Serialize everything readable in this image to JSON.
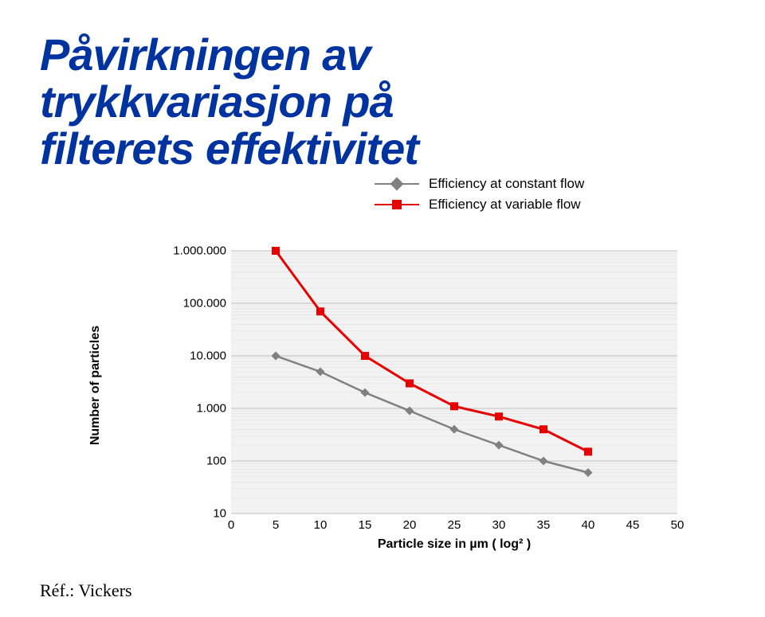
{
  "title_lines": [
    "Påvirkningen av",
    "trykkvariasjon på",
    "filterets effektivitet"
  ],
  "title_color": "#0033a0",
  "title_shadow_color": "#8b98c2",
  "title_fontsize": 56,
  "legend": {
    "items": [
      {
        "label": "Efficiency at constant flow",
        "color": "#808080",
        "marker": "diamond"
      },
      {
        "label": "Efficiency at variable flow",
        "color": "#e60000",
        "marker": "square"
      }
    ],
    "fontsize": 17
  },
  "chart": {
    "type": "line",
    "background_color": "#f2f2f2",
    "gridline_color": "#cccccc",
    "ylabel": "Number of particles",
    "xlabel": "Particle size in µm ( log² )",
    "x_min": 0,
    "x_max": 50,
    "x_tick_step": 5,
    "x_ticks": [
      "0",
      "5",
      "10",
      "15",
      "20",
      "25",
      "30",
      "35",
      "40",
      "45",
      "50"
    ],
    "y_scale": "log",
    "y_ticks": [
      {
        "v": 1000000,
        "label": "1.000.000"
      },
      {
        "v": 100000,
        "label": "100.000"
      },
      {
        "v": 10000,
        "label": "10.000"
      },
      {
        "v": 1000,
        "label": "1.000"
      },
      {
        "v": 100,
        "label": "100"
      },
      {
        "v": 10,
        "label": "10"
      }
    ],
    "series": [
      {
        "name": "constant",
        "color": "#808080",
        "line_width": 2.5,
        "marker": "diamond",
        "marker_size": 11,
        "points": [
          {
            "x": 5,
            "y": 10000
          },
          {
            "x": 10,
            "y": 5000
          },
          {
            "x": 15,
            "y": 2000
          },
          {
            "x": 20,
            "y": 900
          },
          {
            "x": 25,
            "y": 400
          },
          {
            "x": 30,
            "y": 200
          },
          {
            "x": 35,
            "y": 100
          },
          {
            "x": 40,
            "y": 60
          }
        ]
      },
      {
        "name": "variable",
        "color": "#e60000",
        "line_width": 3,
        "marker": "square",
        "marker_size": 10,
        "points": [
          {
            "x": 5,
            "y": 1000000
          },
          {
            "x": 10,
            "y": 70000
          },
          {
            "x": 15,
            "y": 10000
          },
          {
            "x": 20,
            "y": 3000
          },
          {
            "x": 25,
            "y": 1100
          },
          {
            "x": 30,
            "y": 700
          },
          {
            "x": 35,
            "y": 400
          },
          {
            "x": 40,
            "y": 150
          }
        ]
      }
    ]
  },
  "reference": "Réf.: Vickers"
}
